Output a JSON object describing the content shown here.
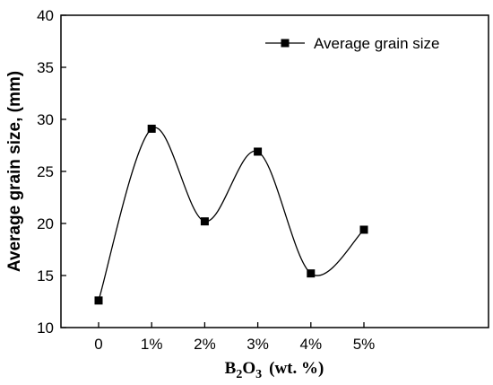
{
  "chart_data": {
    "type": "line",
    "title": "",
    "xlabel_main": "B",
    "xlabel_sub1": "2",
    "xlabel_mid": "O",
    "xlabel_sub2": "3",
    "xlabel_unit": "(wt. %)",
    "ylabel": "Average grain size, (mm)",
    "categories": [
      "0",
      "1%",
      "2%",
      "3%",
      "4%",
      "5%"
    ],
    "ylim": [
      10,
      40
    ],
    "yticks": [
      "10",
      "15",
      "20",
      "25",
      "30",
      "35",
      "40"
    ],
    "series": [
      {
        "name": "Average grain size",
        "values": [
          12.6,
          29.1,
          20.2,
          26.9,
          15.2,
          19.4
        ],
        "color": "#000000",
        "marker": "square",
        "smooth": true
      }
    ],
    "legend_position": "top-right",
    "grid": false
  }
}
